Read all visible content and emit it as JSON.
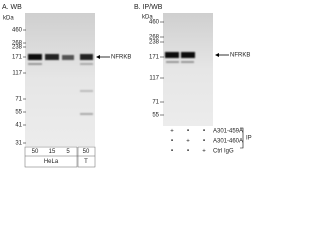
{
  "panel_a": {
    "label": "A. WB",
    "kda": "kDa",
    "markers": [
      "460",
      "268",
      "238",
      "171",
      "117",
      "71",
      "55",
      "41",
      "31"
    ],
    "target": "NFRKB",
    "lanes": [
      "50",
      "15",
      "5",
      "50"
    ],
    "groups": [
      "HeLa",
      "T"
    ]
  },
  "panel_b": {
    "label": "B. IP/WB",
    "kda": "kDa",
    "markers": [
      "460",
      "268",
      "238",
      "171",
      "117",
      "71",
      "55"
    ],
    "target": "NFRKB",
    "rows": [
      {
        "name": "A301-459A",
        "marks": [
          "+",
          "•",
          "•"
        ]
      },
      {
        "name": "A301-460A",
        "marks": [
          "•",
          "+",
          "•"
        ]
      },
      {
        "name": "Ctrl IgG",
        "marks": [
          "•",
          "•",
          "+"
        ]
      }
    ],
    "ip": "IP"
  }
}
